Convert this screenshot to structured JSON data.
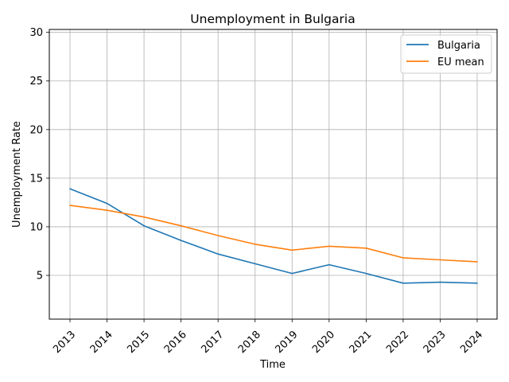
{
  "chart_data": {
    "type": "line",
    "title": "Unemployment in Bulgaria",
    "xlabel": "Time",
    "ylabel": "Unemployment Rate",
    "categories": [
      "2013",
      "2014",
      "2015",
      "2016",
      "2017",
      "2018",
      "2019",
      "2020",
      "2021",
      "2022",
      "2023",
      "2024"
    ],
    "ylim": [
      0.5,
      30.3
    ],
    "yticks": [
      5,
      10,
      15,
      20,
      25,
      30
    ],
    "grid": true,
    "legend_position": "top-right",
    "series": [
      {
        "name": "Bulgaria",
        "color": "#1f77b4",
        "values": [
          13.9,
          12.4,
          10.1,
          8.6,
          7.2,
          6.2,
          5.2,
          6.1,
          5.2,
          4.2,
          4.3,
          4.2
        ]
      },
      {
        "name": "EU mean",
        "color": "#ff7f0e",
        "values": [
          12.2,
          11.7,
          11.0,
          10.1,
          9.1,
          8.2,
          7.6,
          8.0,
          7.8,
          6.8,
          6.6,
          6.4
        ]
      }
    ]
  }
}
